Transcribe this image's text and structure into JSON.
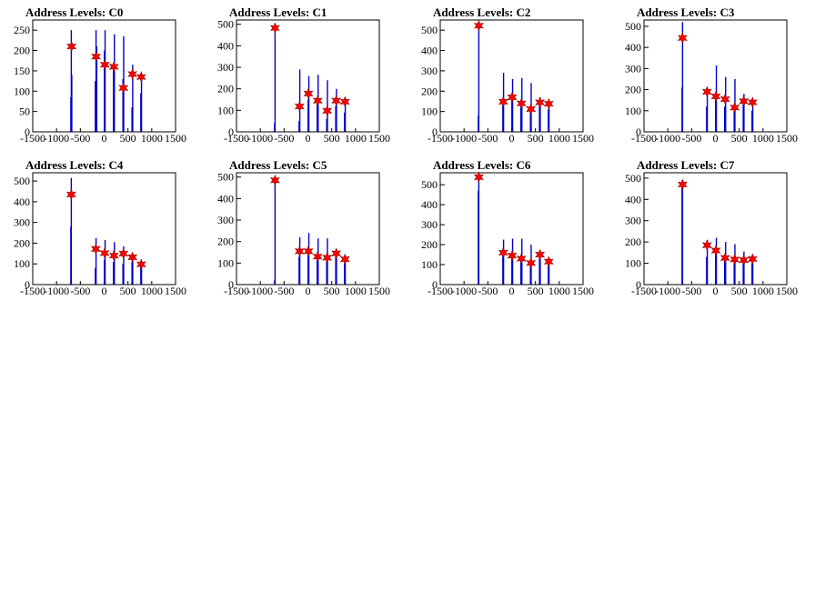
{
  "page": {
    "background": "#ffffff"
  },
  "colors": {
    "histogram": "#0000cc",
    "marker_fill": "#ff0000",
    "marker_stroke": "#8b0000",
    "frame": "#000000",
    "zero_line": "#000000"
  },
  "chart_data": [
    {
      "type": "histogram",
      "title": "Address Levels: C0",
      "xlim": [
        -1500,
        1500
      ],
      "ylim": [
        0,
        275
      ],
      "x_ticks": [
        -1500,
        -1000,
        -500,
        0,
        500,
        1000,
        1500
      ],
      "y_ticks": [
        0,
        50,
        100,
        150,
        200,
        250
      ],
      "bins": [
        {
          "x": -700,
          "y": 85
        },
        {
          "x": -690,
          "y": 250
        },
        {
          "x": -680,
          "y": 140
        },
        {
          "x": -185,
          "y": 125
        },
        {
          "x": -170,
          "y": 250
        },
        {
          "x": -155,
          "y": 210
        },
        {
          "x": 5,
          "y": 200
        },
        {
          "x": 20,
          "y": 250
        },
        {
          "x": 195,
          "y": 165
        },
        {
          "x": 215,
          "y": 240
        },
        {
          "x": 395,
          "y": 130
        },
        {
          "x": 410,
          "y": 235
        },
        {
          "x": 585,
          "y": 60
        },
        {
          "x": 600,
          "y": 165
        },
        {
          "x": 770,
          "y": 95
        },
        {
          "x": 785,
          "y": 140
        }
      ],
      "markers": [
        {
          "x": -685,
          "y": 210
        },
        {
          "x": -170,
          "y": 185
        },
        {
          "x": 15,
          "y": 165
        },
        {
          "x": 205,
          "y": 160
        },
        {
          "x": 405,
          "y": 108
        },
        {
          "x": 595,
          "y": 142
        },
        {
          "x": 780,
          "y": 135
        }
      ]
    },
    {
      "type": "histogram",
      "title": "Address Levels: C1",
      "xlim": [
        -1500,
        1500
      ],
      "ylim": [
        0,
        520
      ],
      "x_ticks": [
        -1500,
        -1000,
        -500,
        0,
        500,
        1000,
        1500
      ],
      "y_ticks": [
        0,
        100,
        200,
        300,
        400,
        500
      ],
      "bins": [
        {
          "x": -700,
          "y": 40
        },
        {
          "x": -690,
          "y": 490
        },
        {
          "x": -185,
          "y": 50
        },
        {
          "x": -170,
          "y": 290
        },
        {
          "x": 5,
          "y": 150
        },
        {
          "x": 20,
          "y": 260
        },
        {
          "x": 195,
          "y": 130
        },
        {
          "x": 215,
          "y": 265
        },
        {
          "x": 395,
          "y": 60
        },
        {
          "x": 410,
          "y": 240
        },
        {
          "x": 585,
          "y": 120
        },
        {
          "x": 600,
          "y": 200
        },
        {
          "x": 770,
          "y": 90
        },
        {
          "x": 785,
          "y": 145
        }
      ],
      "markers": [
        {
          "x": -690,
          "y": 483
        },
        {
          "x": -175,
          "y": 118
        },
        {
          "x": 10,
          "y": 178
        },
        {
          "x": 205,
          "y": 145
        },
        {
          "x": 405,
          "y": 98
        },
        {
          "x": 595,
          "y": 145
        },
        {
          "x": 780,
          "y": 140
        }
      ]
    },
    {
      "type": "histogram",
      "title": "Address Levels: C2",
      "xlim": [
        -1500,
        1500
      ],
      "ylim": [
        0,
        550
      ],
      "x_ticks": [
        -1500,
        -1000,
        -500,
        0,
        500,
        1000,
        1500
      ],
      "y_ticks": [
        0,
        100,
        200,
        300,
        400,
        500
      ],
      "bins": [
        {
          "x": -700,
          "y": 80
        },
        {
          "x": -690,
          "y": 520
        },
        {
          "x": -185,
          "y": 150
        },
        {
          "x": -170,
          "y": 290
        },
        {
          "x": 5,
          "y": 180
        },
        {
          "x": 20,
          "y": 260
        },
        {
          "x": 195,
          "y": 140
        },
        {
          "x": 215,
          "y": 265
        },
        {
          "x": 395,
          "y": 120
        },
        {
          "x": 410,
          "y": 240
        },
        {
          "x": 585,
          "y": 140
        },
        {
          "x": 600,
          "y": 170
        },
        {
          "x": 770,
          "y": 110
        },
        {
          "x": 785,
          "y": 150
        }
      ],
      "markers": [
        {
          "x": -690,
          "y": 522
        },
        {
          "x": -175,
          "y": 148
        },
        {
          "x": 10,
          "y": 170
        },
        {
          "x": 205,
          "y": 140
        },
        {
          "x": 405,
          "y": 112
        },
        {
          "x": 595,
          "y": 145
        },
        {
          "x": 780,
          "y": 138
        }
      ]
    },
    {
      "type": "histogram",
      "title": "Address Levels: C3",
      "xlim": [
        -1500,
        1500
      ],
      "ylim": [
        0,
        530
      ],
      "x_ticks": [
        -1500,
        -1000,
        -500,
        0,
        500,
        1000,
        1500
      ],
      "y_ticks": [
        0,
        100,
        200,
        300,
        400,
        500
      ],
      "bins": [
        {
          "x": -700,
          "y": 210
        },
        {
          "x": -690,
          "y": 520
        },
        {
          "x": -185,
          "y": 120
        },
        {
          "x": -170,
          "y": 210
        },
        {
          "x": 5,
          "y": 150
        },
        {
          "x": 20,
          "y": 315
        },
        {
          "x": 195,
          "y": 120
        },
        {
          "x": 215,
          "y": 260
        },
        {
          "x": 395,
          "y": 100
        },
        {
          "x": 410,
          "y": 250
        },
        {
          "x": 585,
          "y": 130
        },
        {
          "x": 600,
          "y": 180
        },
        {
          "x": 770,
          "y": 100
        },
        {
          "x": 785,
          "y": 150
        }
      ],
      "markers": [
        {
          "x": -690,
          "y": 445
        },
        {
          "x": -175,
          "y": 190
        },
        {
          "x": 10,
          "y": 168
        },
        {
          "x": 205,
          "y": 155
        },
        {
          "x": 405,
          "y": 115
        },
        {
          "x": 595,
          "y": 145
        },
        {
          "x": 780,
          "y": 140
        }
      ]
    },
    {
      "type": "histogram",
      "title": "Address Levels: C4",
      "xlim": [
        -1500,
        1500
      ],
      "ylim": [
        0,
        540
      ],
      "x_ticks": [
        -1500,
        -1000,
        -500,
        0,
        500,
        1000,
        1500
      ],
      "y_ticks": [
        0,
        100,
        200,
        300,
        400,
        500
      ],
      "bins": [
        {
          "x": -700,
          "y": 280
        },
        {
          "x": -690,
          "y": 515
        },
        {
          "x": -185,
          "y": 80
        },
        {
          "x": -170,
          "y": 225
        },
        {
          "x": 5,
          "y": 120
        },
        {
          "x": 20,
          "y": 215
        },
        {
          "x": 195,
          "y": 110
        },
        {
          "x": 215,
          "y": 205
        },
        {
          "x": 395,
          "y": 100
        },
        {
          "x": 410,
          "y": 185
        },
        {
          "x": 585,
          "y": 110
        },
        {
          "x": 600,
          "y": 150
        },
        {
          "x": 770,
          "y": 90
        },
        {
          "x": 785,
          "y": 115
        }
      ],
      "markers": [
        {
          "x": -690,
          "y": 435
        },
        {
          "x": -175,
          "y": 172
        },
        {
          "x": 10,
          "y": 152
        },
        {
          "x": 205,
          "y": 140
        },
        {
          "x": 405,
          "y": 150
        },
        {
          "x": 595,
          "y": 132
        },
        {
          "x": 780,
          "y": 98
        }
      ]
    },
    {
      "type": "histogram",
      "title": "Address Levels: C5",
      "xlim": [
        -1500,
        1500
      ],
      "ylim": [
        0,
        520
      ],
      "x_ticks": [
        -1500,
        -1000,
        -500,
        0,
        500,
        1000,
        1500
      ],
      "y_ticks": [
        0,
        100,
        200,
        300,
        400,
        500
      ],
      "bins": [
        {
          "x": -700,
          "y": 20
        },
        {
          "x": -690,
          "y": 495
        },
        {
          "x": -185,
          "y": 130
        },
        {
          "x": -170,
          "y": 220
        },
        {
          "x": 5,
          "y": 140
        },
        {
          "x": 20,
          "y": 240
        },
        {
          "x": 195,
          "y": 120
        },
        {
          "x": 215,
          "y": 215
        },
        {
          "x": 395,
          "y": 110
        },
        {
          "x": 410,
          "y": 215
        },
        {
          "x": 585,
          "y": 130
        },
        {
          "x": 600,
          "y": 165
        },
        {
          "x": 770,
          "y": 100
        },
        {
          "x": 785,
          "y": 135
        }
      ],
      "markers": [
        {
          "x": -690,
          "y": 485
        },
        {
          "x": -175,
          "y": 155
        },
        {
          "x": 10,
          "y": 155
        },
        {
          "x": 205,
          "y": 130
        },
        {
          "x": 405,
          "y": 125
        },
        {
          "x": 595,
          "y": 145
        },
        {
          "x": 780,
          "y": 118
        }
      ]
    },
    {
      "type": "histogram",
      "title": "Address Levels: C6",
      "xlim": [
        -1500,
        1500
      ],
      "ylim": [
        0,
        560
      ],
      "x_ticks": [
        -1500,
        -1000,
        -500,
        0,
        500,
        1000,
        1500
      ],
      "y_ticks": [
        0,
        100,
        200,
        300,
        400,
        500
      ],
      "bins": [
        {
          "x": -700,
          "y": 470
        },
        {
          "x": -690,
          "y": 540
        },
        {
          "x": -185,
          "y": 150
        },
        {
          "x": -170,
          "y": 225
        },
        {
          "x": 5,
          "y": 150
        },
        {
          "x": 20,
          "y": 230
        },
        {
          "x": 195,
          "y": 130
        },
        {
          "x": 215,
          "y": 230
        },
        {
          "x": 395,
          "y": 100
        },
        {
          "x": 410,
          "y": 200
        },
        {
          "x": 585,
          "y": 130
        },
        {
          "x": 600,
          "y": 165
        },
        {
          "x": 770,
          "y": 100
        },
        {
          "x": 785,
          "y": 130
        }
      ],
      "markers": [
        {
          "x": -690,
          "y": 538
        },
        {
          "x": -175,
          "y": 160
        },
        {
          "x": 10,
          "y": 145
        },
        {
          "x": 205,
          "y": 130
        },
        {
          "x": 405,
          "y": 108
        },
        {
          "x": 595,
          "y": 150
        },
        {
          "x": 780,
          "y": 115
        }
      ]
    },
    {
      "type": "histogram",
      "title": "Address Levels: C7",
      "xlim": [
        -1500,
        1500
      ],
      "ylim": [
        0,
        525
      ],
      "x_ticks": [
        -1500,
        -1000,
        -500,
        0,
        500,
        1000,
        1500
      ],
      "y_ticks": [
        0,
        100,
        200,
        300,
        400,
        500
      ],
      "bins": [
        {
          "x": -700,
          "y": 470
        },
        {
          "x": -690,
          "y": 490
        },
        {
          "x": -185,
          "y": 130
        },
        {
          "x": -170,
          "y": 210
        },
        {
          "x": 5,
          "y": 150
        },
        {
          "x": 20,
          "y": 220
        },
        {
          "x": 195,
          "y": 110
        },
        {
          "x": 215,
          "y": 200
        },
        {
          "x": 395,
          "y": 100
        },
        {
          "x": 410,
          "y": 190
        },
        {
          "x": 585,
          "y": 110
        },
        {
          "x": 600,
          "y": 155
        },
        {
          "x": 770,
          "y": 100
        },
        {
          "x": 785,
          "y": 135
        }
      ],
      "markers": [
        {
          "x": -690,
          "y": 470
        },
        {
          "x": -175,
          "y": 185
        },
        {
          "x": 10,
          "y": 160
        },
        {
          "x": 205,
          "y": 125
        },
        {
          "x": 405,
          "y": 118
        },
        {
          "x": 595,
          "y": 115
        },
        {
          "x": 780,
          "y": 120
        }
      ]
    }
  ]
}
